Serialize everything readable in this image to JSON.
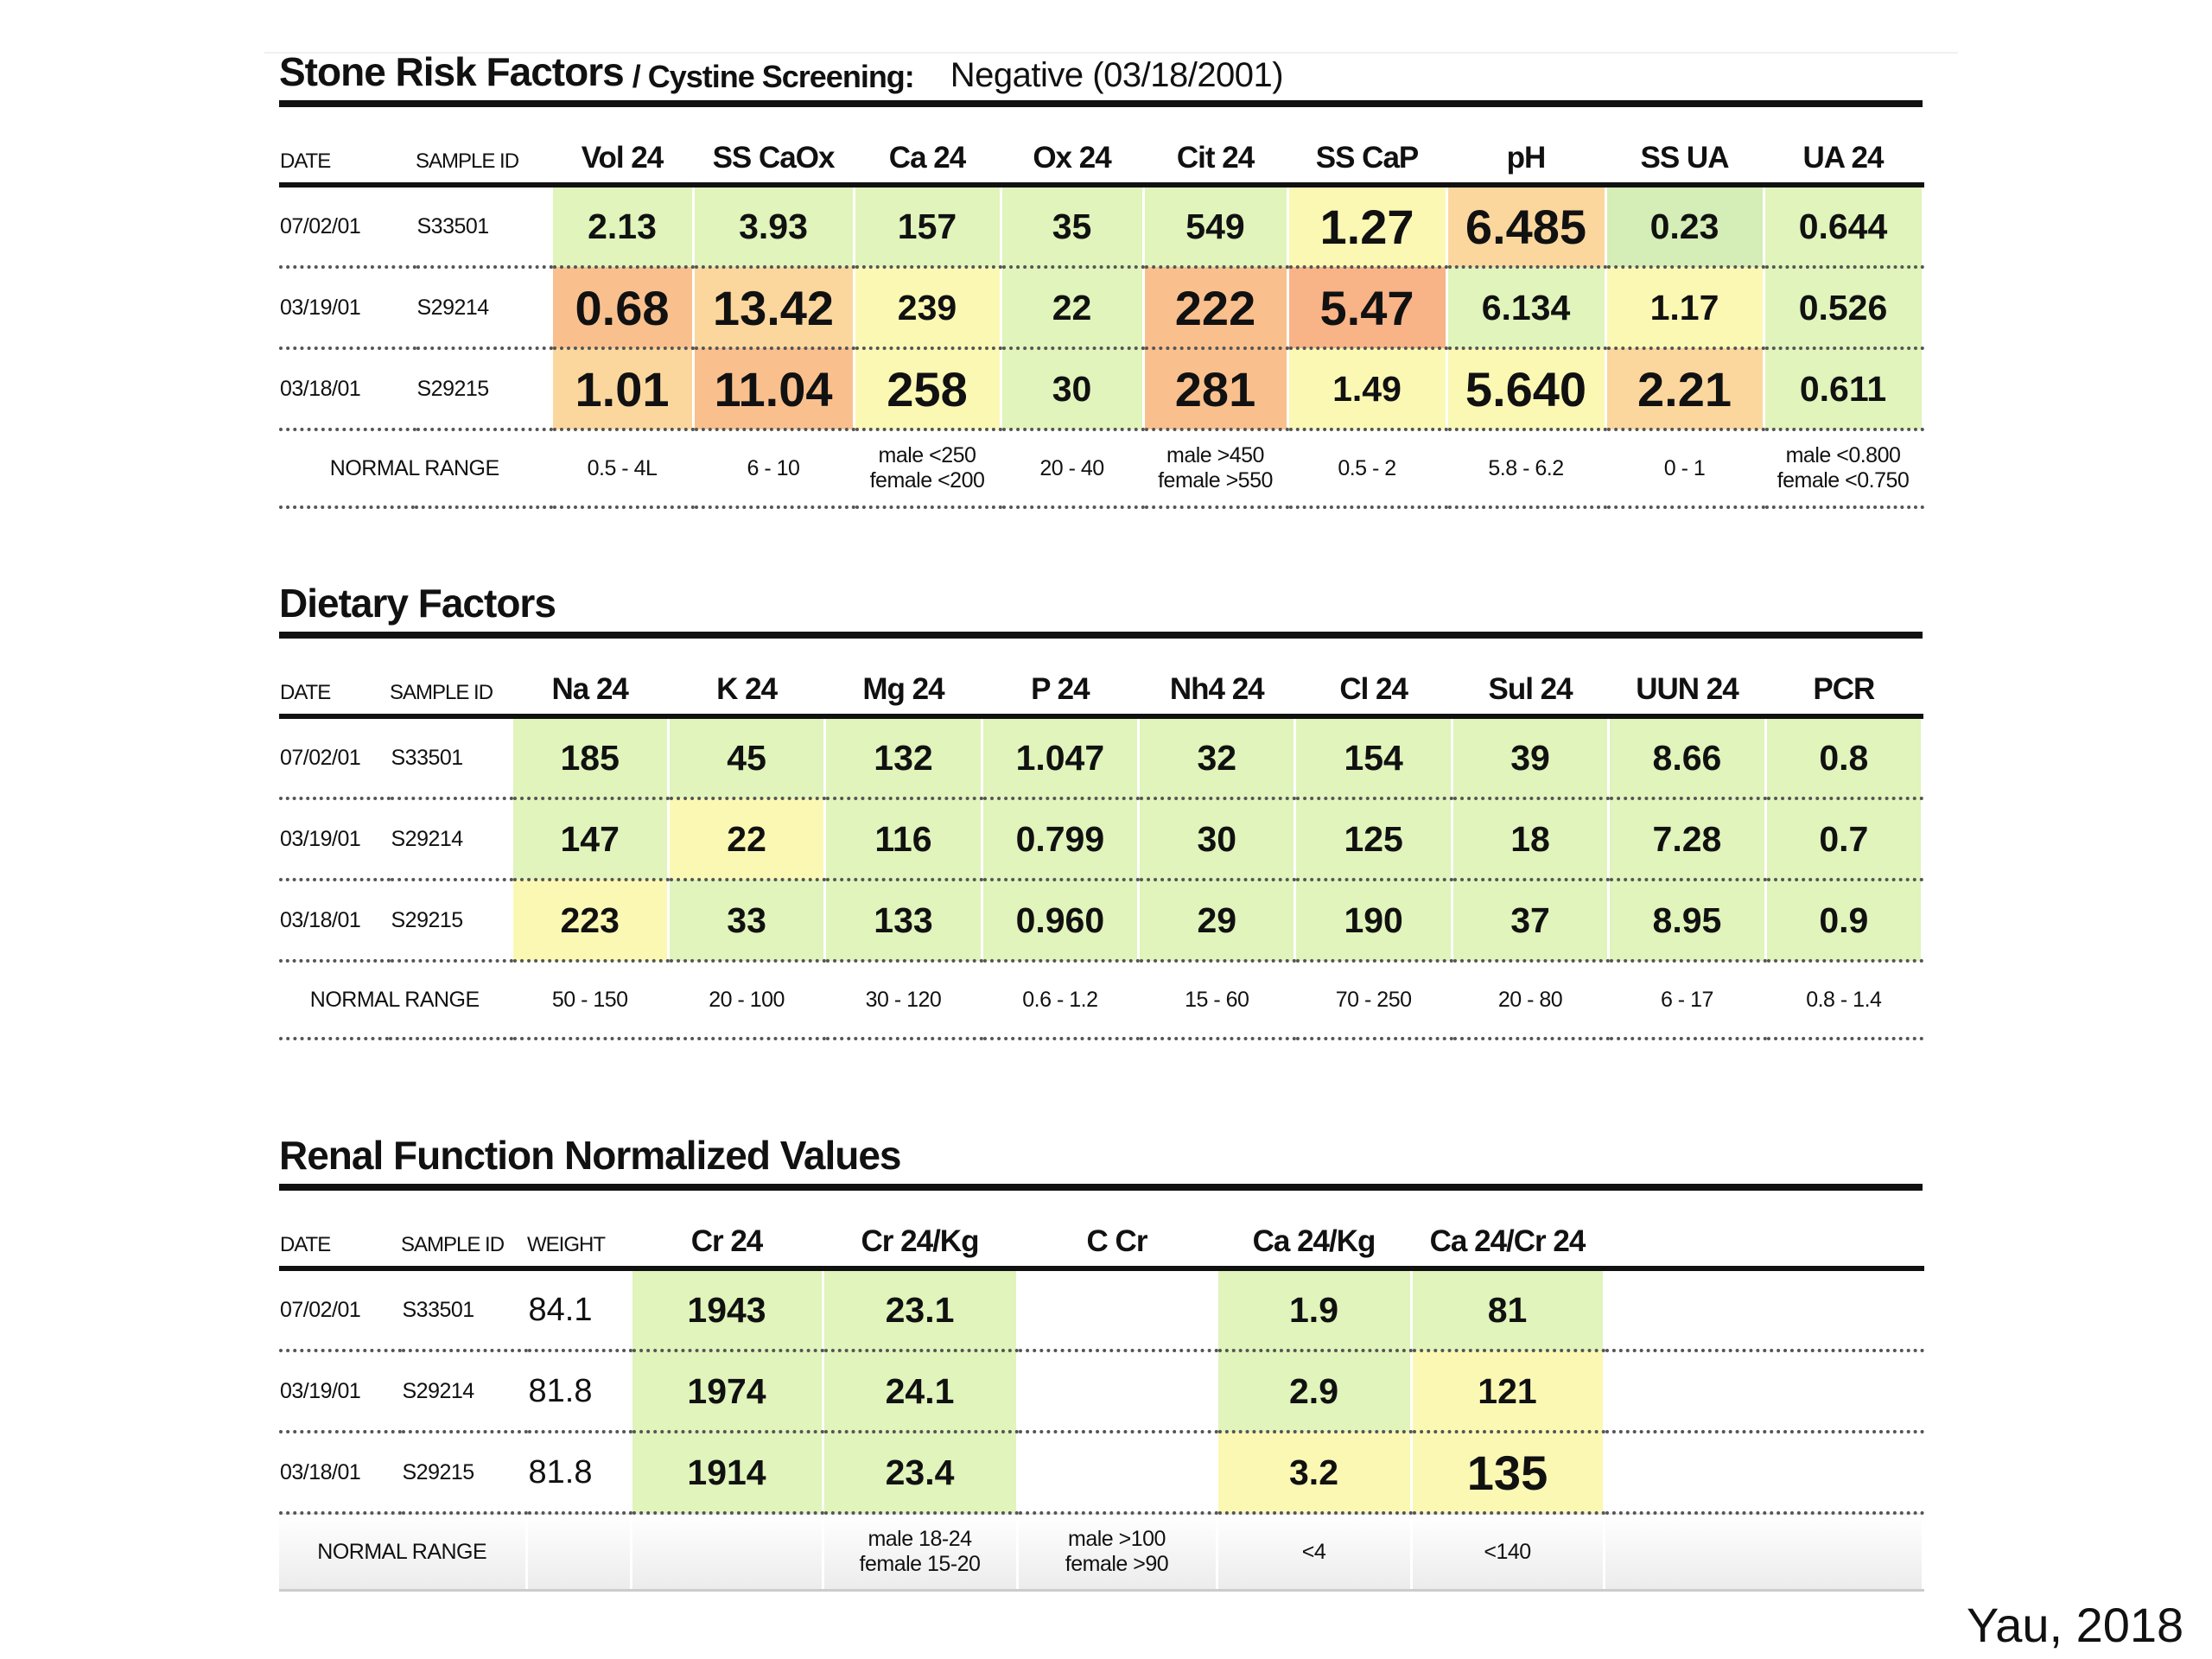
{
  "sections": [
    {
      "title": "Stone Risk Factors",
      "subtitle": "/ Cystine Screening:",
      "status": "Negative (03/18/2001)",
      "headers": [
        "DATE",
        "SAMPLE ID",
        "Vol 24",
        "SS CaOx",
        "Ca 24",
        "Ox 24",
        "Cit 24",
        "SS CaP",
        "pH",
        "SS UA",
        "UA 24"
      ],
      "rows": [
        {
          "date": "07/02/01",
          "id": "S33501",
          "cells": [
            {
              "v": "2.13",
              "c": "g"
            },
            {
              "v": "3.93",
              "c": "g"
            },
            {
              "v": "157",
              "c": "g"
            },
            {
              "v": "35",
              "c": "g"
            },
            {
              "v": "549",
              "c": "g"
            },
            {
              "v": "1.27",
              "c": "y",
              "big": true
            },
            {
              "v": "6.485",
              "c": "lo",
              "big": true
            },
            {
              "v": "0.23",
              "c": "g2"
            },
            {
              "v": "0.644",
              "c": "g"
            }
          ]
        },
        {
          "date": "03/19/01",
          "id": "S29214",
          "cells": [
            {
              "v": "0.68",
              "c": "o",
              "big": true
            },
            {
              "v": "13.42",
              "c": "lo",
              "big": true
            },
            {
              "v": "239",
              "c": "y"
            },
            {
              "v": "22",
              "c": "g"
            },
            {
              "v": "222",
              "c": "o",
              "big": true
            },
            {
              "v": "5.47",
              "c": "o2",
              "big": true
            },
            {
              "v": "6.134",
              "c": "g"
            },
            {
              "v": "1.17",
              "c": "y"
            },
            {
              "v": "0.526",
              "c": "g"
            }
          ]
        },
        {
          "date": "03/18/01",
          "id": "S29215",
          "cells": [
            {
              "v": "1.01",
              "c": "lo",
              "big": true
            },
            {
              "v": "11.04",
              "c": "o",
              "big": true
            },
            {
              "v": "258",
              "c": "y",
              "big": true
            },
            {
              "v": "30",
              "c": "g"
            },
            {
              "v": "281",
              "c": "o",
              "big": true
            },
            {
              "v": "1.49",
              "c": "y"
            },
            {
              "v": "5.640",
              "c": "y",
              "big": true
            },
            {
              "v": "2.21",
              "c": "lo",
              "big": true
            },
            {
              "v": "0.611",
              "c": "g"
            }
          ]
        }
      ],
      "normal_range_label": "NORMAL RANGE",
      "normal_range": [
        "0.5 - 4L",
        "6 - 10",
        "male <250\nfemale <200",
        "20 - 40",
        "male >450\nfemale >550",
        "0.5 - 2",
        "5.8 - 6.2",
        "0 - 1",
        "male <0.800\nfemale <0.750"
      ]
    },
    {
      "title": "Dietary Factors",
      "headers": [
        "DATE",
        "SAMPLE ID",
        "Na 24",
        "K 24",
        "Mg 24",
        "P 24",
        "Nh4 24",
        "Cl 24",
        "Sul 24",
        "UUN 24",
        "PCR"
      ],
      "rows": [
        {
          "date": "07/02/01",
          "id": "S33501",
          "cells": [
            {
              "v": "185",
              "c": "g"
            },
            {
              "v": "45",
              "c": "g"
            },
            {
              "v": "132",
              "c": "g"
            },
            {
              "v": "1.047",
              "c": "g"
            },
            {
              "v": "32",
              "c": "g"
            },
            {
              "v": "154",
              "c": "g"
            },
            {
              "v": "39",
              "c": "g"
            },
            {
              "v": "8.66",
              "c": "g"
            },
            {
              "v": "0.8",
              "c": "g"
            }
          ]
        },
        {
          "date": "03/19/01",
          "id": "S29214",
          "cells": [
            {
              "v": "147",
              "c": "g"
            },
            {
              "v": "22",
              "c": "y"
            },
            {
              "v": "116",
              "c": "g"
            },
            {
              "v": "0.799",
              "c": "g"
            },
            {
              "v": "30",
              "c": "g"
            },
            {
              "v": "125",
              "c": "g"
            },
            {
              "v": "18",
              "c": "g"
            },
            {
              "v": "7.28",
              "c": "g"
            },
            {
              "v": "0.7",
              "c": "g"
            }
          ]
        },
        {
          "date": "03/18/01",
          "id": "S29215",
          "cells": [
            {
              "v": "223",
              "c": "y"
            },
            {
              "v": "33",
              "c": "g"
            },
            {
              "v": "133",
              "c": "g"
            },
            {
              "v": "0.960",
              "c": "g"
            },
            {
              "v": "29",
              "c": "g"
            },
            {
              "v": "190",
              "c": "g"
            },
            {
              "v": "37",
              "c": "g"
            },
            {
              "v": "8.95",
              "c": "g"
            },
            {
              "v": "0.9",
              "c": "g"
            }
          ]
        }
      ],
      "normal_range_label": "NORMAL RANGE",
      "normal_range": [
        "50 - 150",
        "20 - 100",
        "30 - 120",
        "0.6 - 1.2",
        "15 - 60",
        "70 - 250",
        "20 - 80",
        "6 - 17",
        "0.8 - 1.4"
      ]
    },
    {
      "title": "Renal Function Normalized Values",
      "headers": [
        "DATE",
        "SAMPLE ID",
        "WEIGHT",
        "Cr 24",
        "Cr 24/Kg",
        "C Cr",
        "Ca 24/Kg",
        "Ca 24/Cr 24",
        ""
      ],
      "rows": [
        {
          "date": "07/02/01",
          "id": "S33501",
          "weight": "84.1",
          "cells": [
            {
              "v": "1943",
              "c": "g"
            },
            {
              "v": "23.1",
              "c": "g"
            },
            {
              "v": "",
              "c": "w"
            },
            {
              "v": "1.9",
              "c": "g"
            },
            {
              "v": "81",
              "c": "g"
            },
            {
              "v": "",
              "c": "w"
            }
          ]
        },
        {
          "date": "03/19/01",
          "id": "S29214",
          "weight": "81.8",
          "cells": [
            {
              "v": "1974",
              "c": "g"
            },
            {
              "v": "24.1",
              "c": "g"
            },
            {
              "v": "",
              "c": "w"
            },
            {
              "v": "2.9",
              "c": "g"
            },
            {
              "v": "121",
              "c": "y"
            },
            {
              "v": "",
              "c": "w"
            }
          ]
        },
        {
          "date": "03/18/01",
          "id": "S29215",
          "weight": "81.8",
          "cells": [
            {
              "v": "1914",
              "c": "g"
            },
            {
              "v": "23.4",
              "c": "g"
            },
            {
              "v": "",
              "c": "w"
            },
            {
              "v": "3.2",
              "c": "y"
            },
            {
              "v": "135",
              "c": "y",
              "big": true
            },
            {
              "v": "",
              "c": "w"
            }
          ]
        }
      ],
      "normal_range_label": "NORMAL RANGE",
      "normal_range": [
        "",
        "",
        "male 18-24\nfemale 15-20",
        "male >100\nfemale >90",
        "<4",
        "<140",
        ""
      ]
    }
  ],
  "citation": "Yau, 2018"
}
